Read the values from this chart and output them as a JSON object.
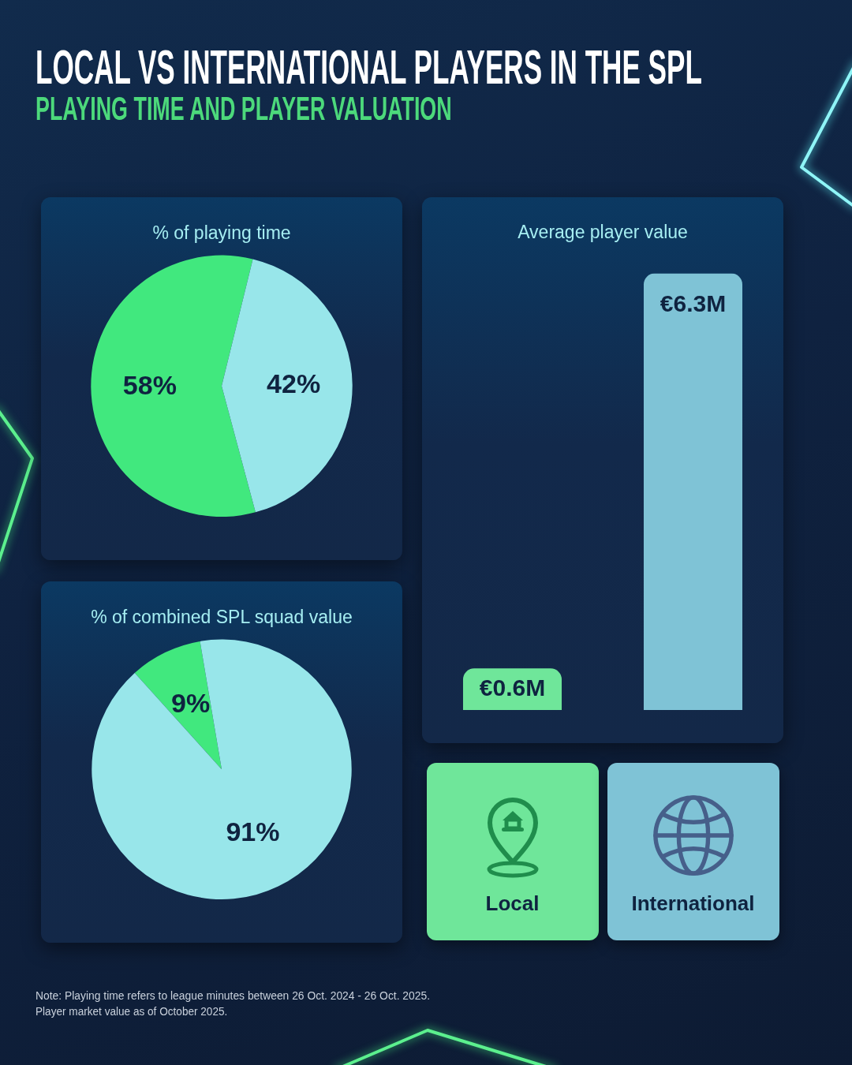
{
  "chart_data": [
    {
      "type": "other",
      "title": "LOCAL VS INTERNATIONAL PLAYERS IN THE SPL",
      "subtitle": "PLAYING TIME AND PLAYER VALUATION",
      "annotations": [
        "Note: Playing time refers to league minutes between 26 Oct. 2024 - 26 Oct. 2025.",
        "Player market value as of October 2025."
      ]
    },
    {
      "type": "pie",
      "title": "% of playing time",
      "categories": [
        null,
        null
      ],
      "values": [
        58,
        42
      ],
      "colors": [
        "#41e87e",
        "#98e6ea"
      ],
      "value_labels": [
        "58%",
        "42%"
      ]
    },
    {
      "type": "pie",
      "title": "% of combined SPL squad value",
      "categories": [
        null,
        null
      ],
      "values": [
        9,
        91
      ],
      "colors": [
        "#41e87e",
        "#98e6ea"
      ],
      "value_labels": [
        "9%",
        "91%"
      ]
    },
    {
      "type": "bar",
      "title": "Average player value",
      "categories": [
        "Local",
        "International"
      ],
      "values": [
        0.6,
        6.3
      ],
      "colors": [
        "#6fe69a",
        "#7fc3d6"
      ],
      "value_labels": [
        "€0.6M",
        "€6.3M"
      ],
      "ylim": [
        0,
        6.3
      ],
      "tick_labels": "x"
    }
  ]
}
